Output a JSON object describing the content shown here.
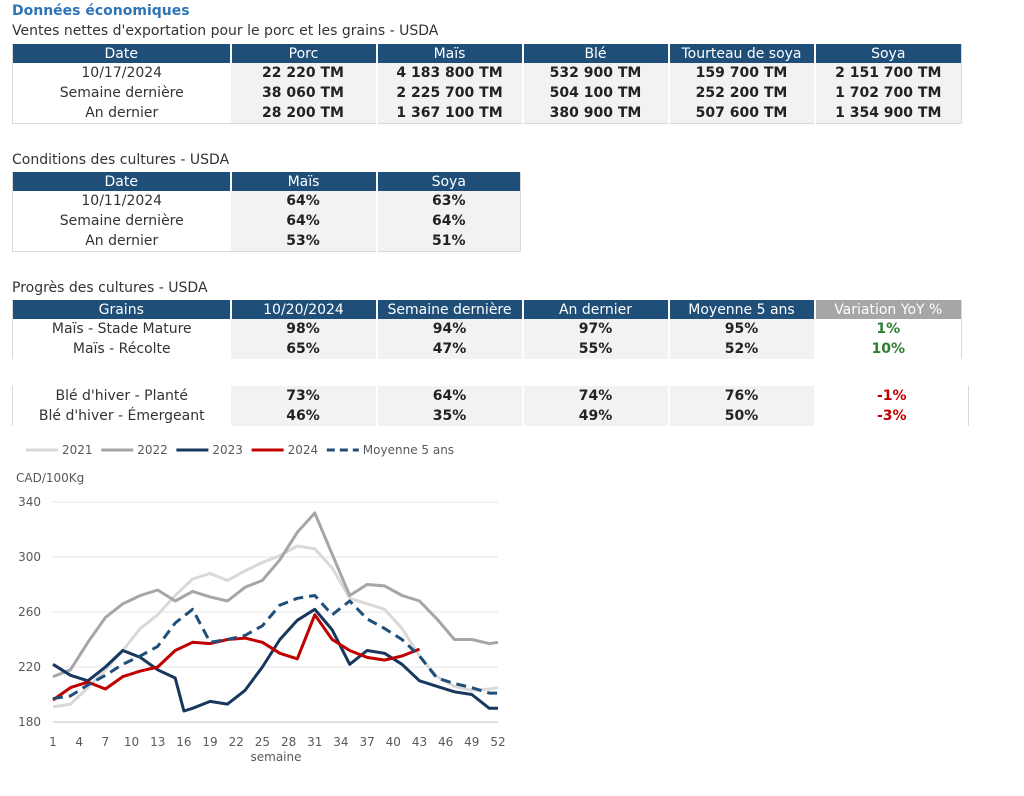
{
  "header": {
    "title": "Données économiques"
  },
  "exports": {
    "title": "Ventes nettes d'exportation pour le porc et les grains - USDA",
    "columns": [
      "Date",
      "Porc",
      "Maïs",
      "Blé",
      "Tourteau de soya",
      "Soya"
    ],
    "rows": [
      [
        "10/17/2024",
        "22 220 TM",
        "4 183 800 TM",
        "532 900 TM",
        "159 700 TM",
        "2 151 700 TM"
      ],
      [
        "Semaine dernière",
        "38 060 TM",
        "2 225 700 TM",
        "504 100 TM",
        "252 200 TM",
        "1 702 700 TM"
      ],
      [
        "An dernier",
        "28 200 TM",
        "1 367 100 TM",
        "380 900 TM",
        "507 600 TM",
        "1 354 900 TM"
      ]
    ]
  },
  "conditions": {
    "title": "Conditions des cultures - USDA",
    "columns": [
      "Date",
      "Maïs",
      "Soya"
    ],
    "rows": [
      [
        "10/11/2024",
        "64%",
        "63%"
      ],
      [
        "Semaine dernière",
        "64%",
        "64%"
      ],
      [
        "An dernier",
        "53%",
        "51%"
      ]
    ]
  },
  "progress": {
    "title": "Progrès des cultures - USDA",
    "columns": [
      "Grains",
      "10/20/2024",
      "Semaine dernière",
      "An dernier",
      "Moyenne 5 ans",
      "Variation YoY %"
    ],
    "rows": [
      [
        "Maïs - Stade Mature",
        "98%",
        "94%",
        "97%",
        "95%",
        "1%"
      ],
      [
        "Maïs - Récolte",
        "65%",
        "47%",
        "55%",
        "52%",
        "10%"
      ]
    ],
    "rows2": [
      [
        "Blé d'hiver - Planté",
        "73%",
        "64%",
        "74%",
        "76%",
        "-1%"
      ],
      [
        "Blé d'hiver - Émergeant",
        "46%",
        "35%",
        "49%",
        "50%",
        "-3%"
      ]
    ]
  },
  "chart_data": {
    "type": "line",
    "ylabel": "CAD/100Kg",
    "xlabel": "semaine",
    "ylim": [
      180,
      340
    ],
    "yticks": [
      180,
      220,
      260,
      300,
      340
    ],
    "xlim": [
      1,
      52
    ],
    "xticks": [
      1,
      4,
      7,
      10,
      13,
      16,
      19,
      22,
      25,
      28,
      31,
      34,
      37,
      40,
      43,
      46,
      49,
      52
    ],
    "series": [
      {
        "name": "2021",
        "color": "#d9d9d9",
        "dash": false,
        "x": [
          1,
          3,
          5,
          7,
          9,
          11,
          13,
          15,
          17,
          19,
          21,
          23,
          25,
          27,
          29,
          31,
          33,
          35,
          37,
          39,
          41,
          43,
          45,
          47,
          49,
          51,
          52
        ],
        "y": [
          191,
          193,
          205,
          218,
          232,
          248,
          258,
          272,
          284,
          288,
          283,
          290,
          296,
          301,
          308,
          306,
          292,
          270,
          266,
          262,
          248,
          228,
          213,
          206,
          203,
          204,
          205
        ]
      },
      {
        "name": "2022",
        "color": "#a6a6a6",
        "dash": false,
        "x": [
          1,
          3,
          5,
          7,
          9,
          11,
          13,
          15,
          17,
          19,
          21,
          23,
          25,
          27,
          29,
          31,
          33,
          35,
          37,
          39,
          41,
          43,
          45,
          47,
          49,
          51,
          52
        ],
        "y": [
          213,
          218,
          238,
          256,
          266,
          272,
          276,
          268,
          275,
          271,
          268,
          278,
          283,
          298,
          318,
          332,
          302,
          272,
          280,
          279,
          272,
          268,
          255,
          240,
          240,
          237,
          238
        ]
      },
      {
        "name": "2023",
        "color": "#17375e",
        "dash": false,
        "x": [
          1,
          3,
          5,
          7,
          9,
          11,
          13,
          15,
          16,
          17,
          19,
          21,
          23,
          25,
          27,
          29,
          31,
          33,
          35,
          37,
          39,
          41,
          43,
          45,
          47,
          49,
          51,
          52
        ],
        "y": [
          222,
          214,
          210,
          220,
          232,
          227,
          218,
          212,
          188,
          190,
          195,
          193,
          203,
          220,
          240,
          254,
          262,
          247,
          222,
          232,
          230,
          222,
          210,
          206,
          202,
          200,
          190,
          190
        ]
      },
      {
        "name": "2024",
        "color": "#c00000",
        "dash": false,
        "x": [
          1,
          3,
          5,
          7,
          9,
          11,
          13,
          15,
          17,
          19,
          21,
          23,
          25,
          27,
          29,
          31,
          33,
          35,
          37,
          39,
          41,
          43
        ],
        "y": [
          196,
          205,
          209,
          204,
          213,
          217,
          220,
          232,
          238,
          237,
          240,
          241,
          238,
          230,
          226,
          258,
          240,
          232,
          227,
          225,
          228,
          233
        ]
      },
      {
        "name": "Moyenne 5 ans",
        "color": "#1f4e79",
        "dash": true,
        "x": [
          1,
          3,
          5,
          7,
          9,
          11,
          13,
          15,
          17,
          19,
          21,
          23,
          25,
          27,
          29,
          31,
          33,
          35,
          37,
          39,
          41,
          43,
          45,
          47,
          49,
          51,
          52
        ],
        "y": [
          197,
          199,
          207,
          214,
          222,
          228,
          235,
          252,
          262,
          238,
          240,
          243,
          250,
          265,
          270,
          272,
          258,
          268,
          255,
          248,
          240,
          228,
          212,
          208,
          205,
          201,
          201
        ]
      }
    ]
  }
}
